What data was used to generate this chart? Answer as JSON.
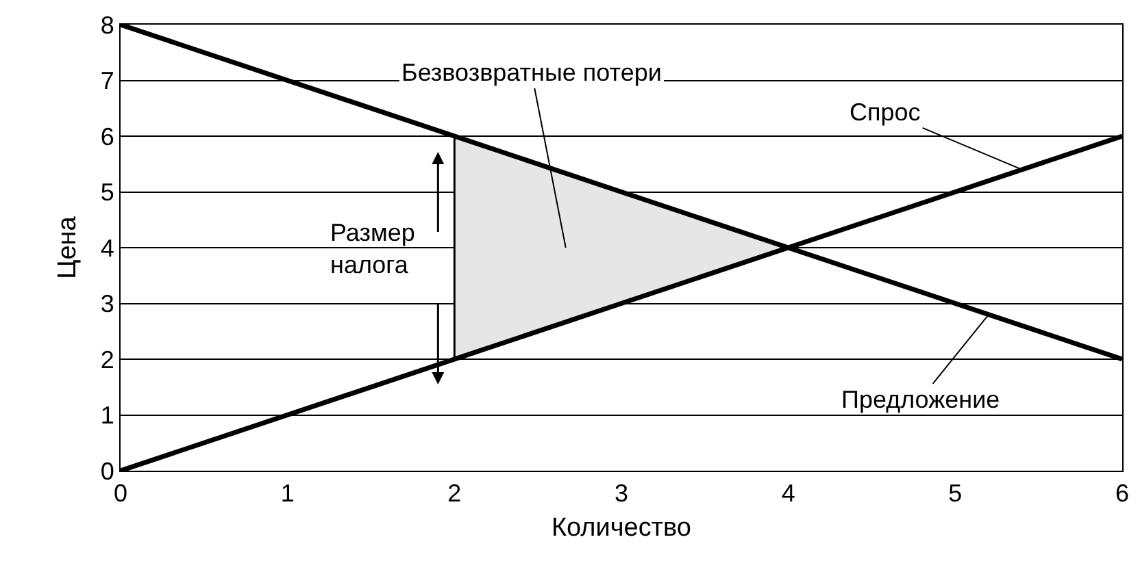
{
  "chart_data": {
    "type": "line",
    "xlabel": "Количество",
    "ylabel": "Цена",
    "xlim": [
      0,
      6
    ],
    "ylim": [
      0,
      8
    ],
    "xticks": [
      0,
      1,
      2,
      3,
      4,
      5,
      6
    ],
    "yticks": [
      0,
      1,
      2,
      3,
      4,
      5,
      6,
      7,
      8
    ],
    "grid": "y",
    "marker": "none",
    "line_style": "solid",
    "series": [
      {
        "type": "area",
        "color": "#e6e6e6",
        "x": [
          2,
          4,
          2,
          2
        ],
        "values": [
          6,
          4,
          2,
          6
        ]
      },
      {
        "color": "#000000",
        "x": [
          2,
          2
        ],
        "values": [
          2,
          6
        ]
      },
      {
        "color": "#000000",
        "x": [
          0,
          6
        ],
        "values": [
          8,
          2
        ]
      },
      {
        "color": "#000000",
        "x": [
          0,
          6
        ],
        "values": [
          0,
          6
        ]
      }
    ],
    "annotations": [
      "Безвозвратные потери",
      {
        "text": "Спрос",
        "x": 5.4,
        "y": 5.4
      },
      {
        "text": "Предложение",
        "x": 5.2,
        "y": 2.8
      },
      {
        "text": "Размер налога",
        "x": 2,
        "y": 4
      }
    ]
  }
}
